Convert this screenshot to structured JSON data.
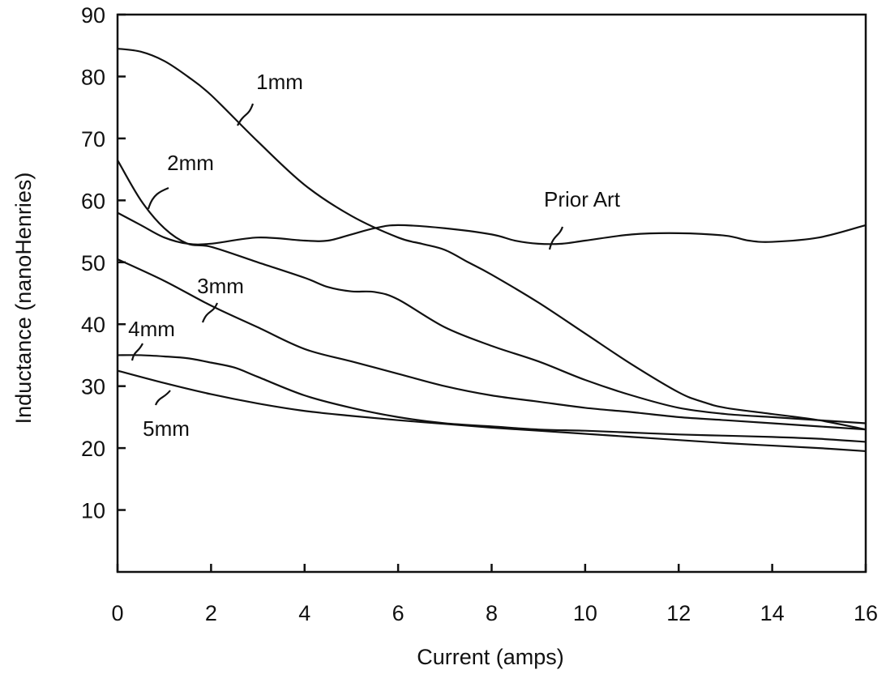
{
  "chart_data": {
    "type": "line",
    "xlabel": "Current (amps)",
    "ylabel": "Inductance (nanoHenries)",
    "xlim": [
      0,
      16
    ],
    "ylim": [
      0,
      90
    ],
    "x_ticks": [
      "0",
      "2",
      "4",
      "6",
      "8",
      "10",
      "12",
      "14",
      "16"
    ],
    "y_ticks": [
      "10",
      "20",
      "30",
      "40",
      "50",
      "60",
      "70",
      "80",
      "90"
    ],
    "grid": false,
    "series": [
      {
        "name": "1mm",
        "x": [
          0,
          0.5,
          1,
          1.5,
          2,
          3,
          4,
          5,
          6,
          6.5,
          7,
          7.5,
          8,
          9,
          10,
          11,
          12,
          12.5,
          13,
          14,
          15,
          16
        ],
        "y": [
          84.5,
          84,
          82.5,
          80,
          77,
          69.5,
          62.5,
          57.5,
          54,
          53,
          52,
          50,
          48,
          43.5,
          38.5,
          33.5,
          29,
          27.5,
          26.5,
          25.5,
          24.5,
          23
        ]
      },
      {
        "name": "2mm",
        "x": [
          0,
          0.5,
          1,
          1.5,
          2,
          3,
          4,
          4.5,
          5,
          5.5,
          6,
          7,
          8,
          9,
          10,
          11,
          12,
          13,
          14,
          15,
          16
        ],
        "y": [
          66.5,
          60,
          55.5,
          53,
          52.5,
          50,
          47.5,
          46,
          45.3,
          45.2,
          44,
          39.5,
          36.5,
          34,
          31,
          28.5,
          26.5,
          25.5,
          25,
          24.5,
          24
        ]
      },
      {
        "name": "Prior Art",
        "x": [
          0,
          0.5,
          1,
          1.5,
          2,
          3,
          4,
          4.5,
          5,
          5.5,
          6,
          7,
          8,
          8.5,
          9,
          9.5,
          10,
          11,
          12,
          13,
          13.5,
          14,
          15,
          16
        ],
        "y": [
          58,
          56,
          54,
          53,
          53,
          54,
          53.5,
          53.5,
          54.5,
          55.5,
          56,
          55.5,
          54.5,
          53.5,
          53,
          53,
          53.5,
          54.5,
          54.7,
          54.3,
          53.5,
          53.3,
          54,
          56
        ]
      },
      {
        "name": "3mm",
        "x": [
          0,
          1,
          2,
          3,
          4,
          5,
          6,
          7,
          8,
          9,
          10,
          11,
          12,
          13,
          14,
          15,
          16
        ],
        "y": [
          50.5,
          47,
          43,
          39.5,
          36,
          34,
          32,
          30,
          28.5,
          27.5,
          26.5,
          25.8,
          25,
          24.5,
          24,
          23.5,
          23
        ]
      },
      {
        "name": "4mm",
        "x": [
          0,
          0.5,
          1,
          1.5,
          2,
          2.5,
          3,
          4,
          5,
          6,
          7,
          8,
          9,
          10,
          11,
          12,
          13,
          14,
          15,
          16
        ],
        "y": [
          35,
          35,
          34.8,
          34.5,
          33.8,
          33,
          31.5,
          28.5,
          26.5,
          25,
          24,
          23.5,
          23,
          22.8,
          22.5,
          22.2,
          22,
          21.8,
          21.5,
          21
        ]
      },
      {
        "name": "5mm",
        "x": [
          0,
          1,
          2,
          3,
          4,
          5,
          6,
          7,
          8,
          9,
          10,
          11,
          12,
          13,
          14,
          15,
          16
        ],
        "y": [
          32.5,
          30.5,
          28.7,
          27.2,
          26,
          25.2,
          24.5,
          23.9,
          23.3,
          22.8,
          22.3,
          21.8,
          21.3,
          20.8,
          20.4,
          20,
          19.5
        ]
      }
    ],
    "annotations": [
      {
        "text": "1mm",
        "series": "1mm"
      },
      {
        "text": "2mm",
        "series": "2mm"
      },
      {
        "text": "Prior Art",
        "series": "Prior Art"
      },
      {
        "text": "3mm",
        "series": "3mm"
      },
      {
        "text": "4mm",
        "series": "4mm"
      },
      {
        "text": "5mm",
        "series": "5mm"
      }
    ]
  }
}
